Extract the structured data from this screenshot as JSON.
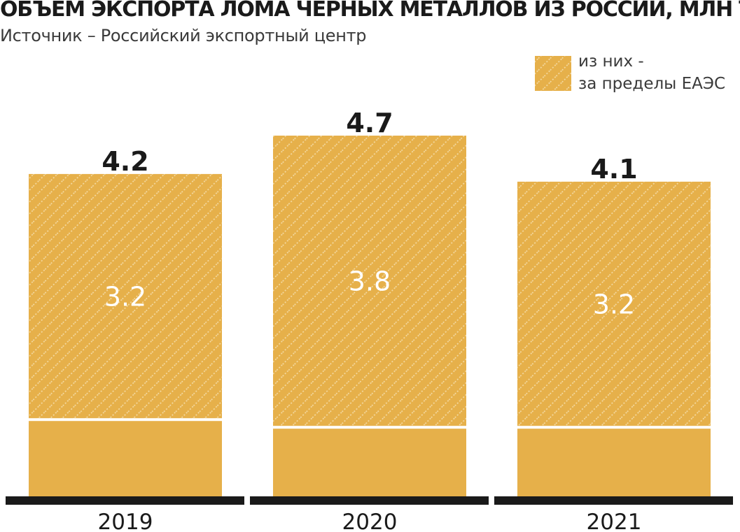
{
  "header": {
    "title": "ОБЪЕМ ЭКСПОРТА ЛОМА ЧЕРНЫХ МЕТАЛЛОВ ИЗ РОССИИ, МЛН ТОНН",
    "subtitle": "Источник – Российский экспортный центр"
  },
  "legend": {
    "line1": "из них -",
    "line2": "за пределы ЕАЭС"
  },
  "colors": {
    "bar": "#e6b04a",
    "hatch": "#f4dba6",
    "baseline": "#1a1a1a"
  },
  "chart_data": {
    "type": "bar",
    "categories": [
      "2019",
      "2020",
      "2021"
    ],
    "series": [
      {
        "values": [
          4.2,
          4.7,
          4.1
        ]
      },
      {
        "name": "из них - за пределы ЕАЭС",
        "values": [
          3.2,
          3.8,
          3.2
        ]
      }
    ],
    "value_labels": [
      "4.2",
      "4.7",
      "4.1"
    ],
    "inner_labels": [
      "3.2",
      "3.8",
      "3.2"
    ],
    "ylim": [
      0,
      4.7
    ],
    "grid": false,
    "legend_position": "top-right"
  }
}
